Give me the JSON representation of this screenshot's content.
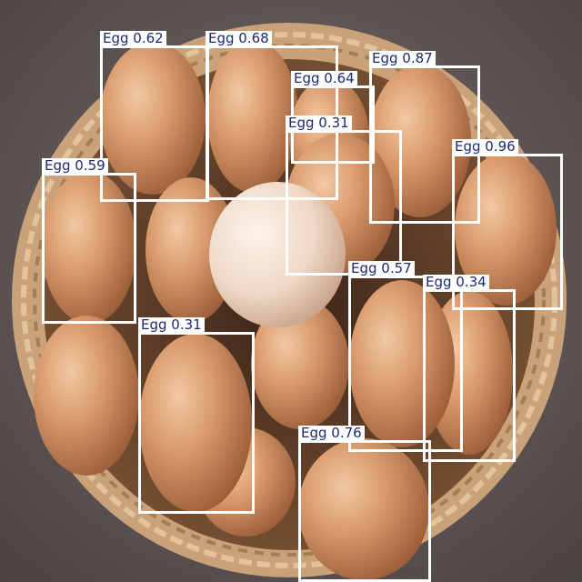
{
  "colors": {
    "box_stroke": "#ffffff",
    "label_bg": "#ffffff",
    "label_text": "#1c2a6e"
  },
  "detections": [
    {
      "label": "Egg 0.62"
    },
    {
      "label": "Egg 0.68"
    },
    {
      "label": "Egg 0.64"
    },
    {
      "label": "Egg 0.87"
    },
    {
      "label": "Egg 0.31"
    },
    {
      "label": "Egg 0.59"
    },
    {
      "label": "Egg 0.96"
    },
    {
      "label": "Egg 0.57"
    },
    {
      "label": "Egg 0.34"
    },
    {
      "label": "Egg 0.31"
    },
    {
      "label": "Egg 0.76"
    }
  ]
}
